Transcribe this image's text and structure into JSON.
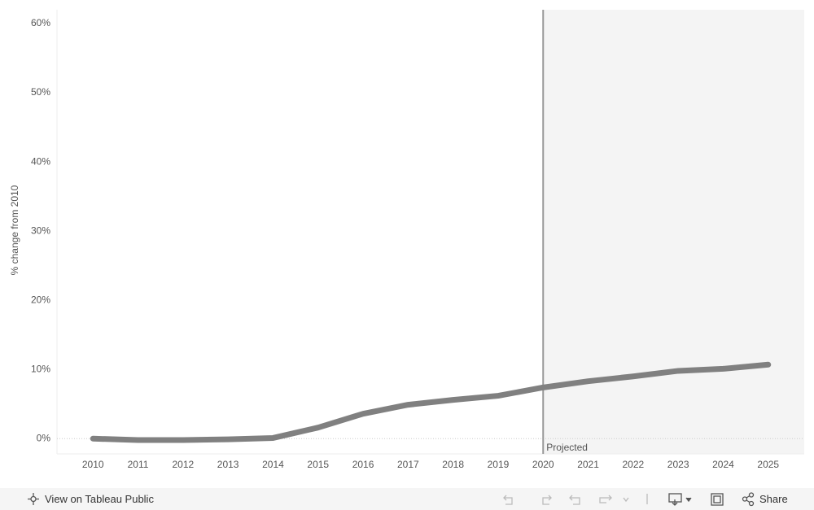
{
  "chart_data": {
    "type": "line",
    "y_label": "% change from 2010",
    "x": [
      2010,
      2011,
      2012,
      2013,
      2014,
      2015,
      2016,
      2017,
      2018,
      2019,
      2020,
      2021,
      2022,
      2023,
      2024,
      2025
    ],
    "values": [
      0,
      -0.2,
      -0.2,
      -0.1,
      0.1,
      1.6,
      3.6,
      4.9,
      5.6,
      6.2,
      7.4,
      8.3,
      9.0,
      9.8,
      10.1,
      10.7
    ],
    "color": "#808080",
    "xlim": [
      2009.2,
      2025.8
    ],
    "xticks": [
      2010,
      2011,
      2012,
      2013,
      2014,
      2015,
      2016,
      2017,
      2018,
      2019,
      2020,
      2021,
      2022,
      2023,
      2024,
      2025
    ],
    "ylim": [
      -2.2,
      62
    ],
    "yticks": [
      {
        "value": 0,
        "label": "0%"
      },
      {
        "value": 10,
        "label": "10%"
      },
      {
        "value": 20,
        "label": "20%"
      },
      {
        "value": 30,
        "label": "30%"
      },
      {
        "value": 40,
        "label": "40%"
      },
      {
        "value": 50,
        "label": "50%"
      },
      {
        "value": 60,
        "label": "60%"
      }
    ],
    "grid": false,
    "projected_from": 2020,
    "projected_label": "Projected"
  },
  "toolbar": {
    "link": "View on Tableau Public",
    "share": "Share"
  }
}
